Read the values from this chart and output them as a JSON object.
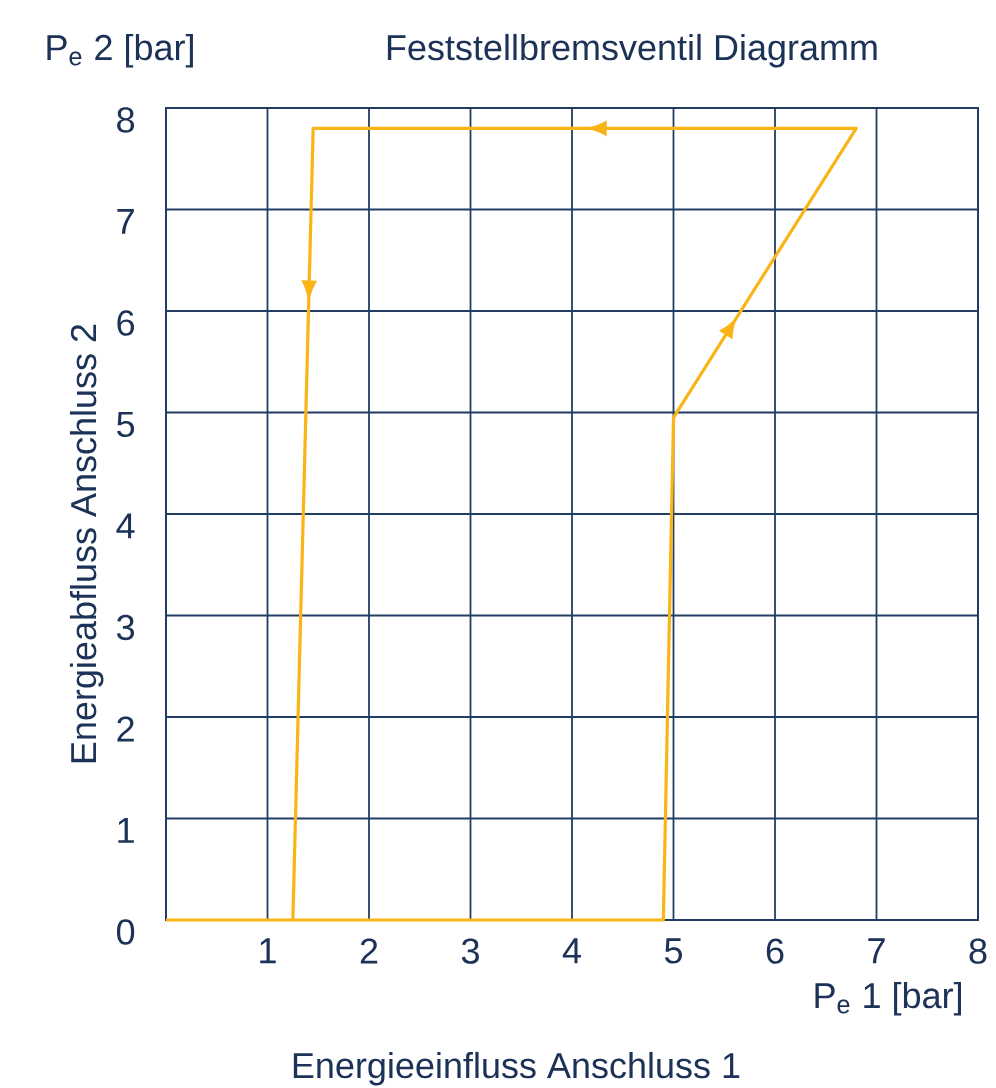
{
  "chart_data": {
    "type": "line",
    "title": "Feststellbremsventil Diagramm",
    "xlabel": "Energieeinfluss Anschluss 1",
    "ylabel": "Energieabfluss Anschluss 2",
    "annotations": [
      "P$_{e}$ 2 [bar]",
      "P$_{e}$ 1 [bar]"
    ],
    "series": [
      {
        "color": "#fbb416",
        "x": [
          0,
          4.9,
          5.0,
          6.8,
          1.45,
          1.25
        ],
        "values": [
          0,
          0,
          4.95,
          7.8,
          7.8,
          0
        ]
      }
    ],
    "xlim": [
      0,
      8
    ],
    "ylim": [
      0,
      8
    ],
    "xticks": [
      1,
      2,
      3,
      4,
      5,
      6,
      7,
      8
    ],
    "yticks": [
      0,
      1,
      2,
      3,
      4,
      5,
      6,
      7,
      8
    ],
    "grid": true,
    "marker": "none",
    "line_style": "solid"
  }
}
